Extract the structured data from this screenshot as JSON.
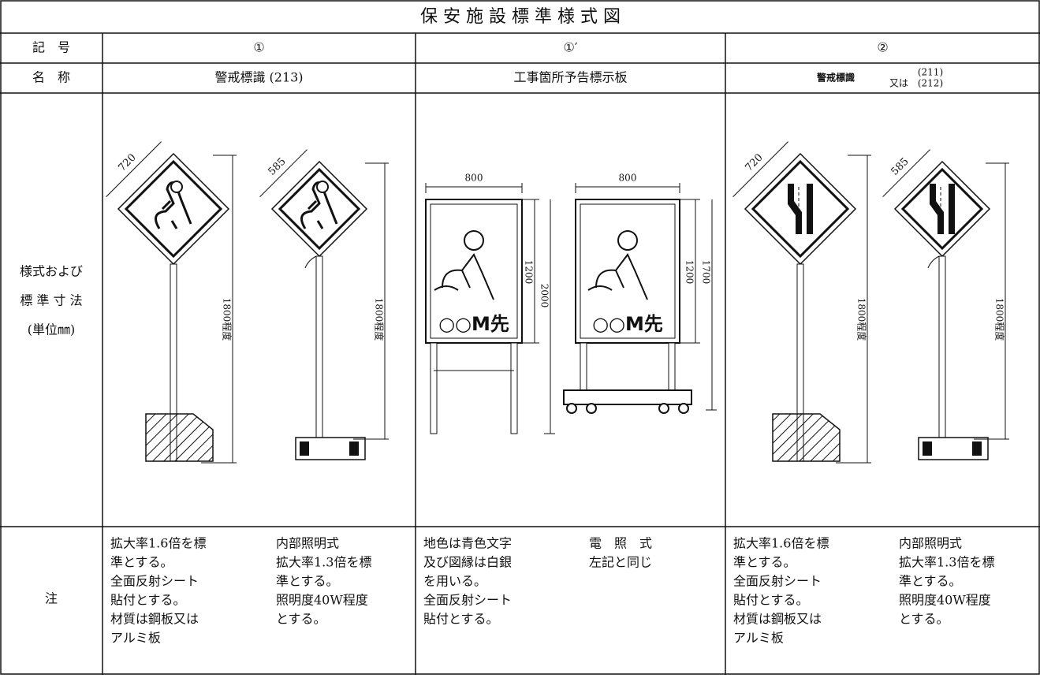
{
  "title": "保 安 施 設 標 準 様 式 図",
  "row_labels": {
    "symbol": "記　号",
    "name": "名　称",
    "style": [
      "様式および",
      "標 準 寸 法",
      "(単位㎜)"
    ],
    "notes": "注"
  },
  "columns": [
    {
      "symbol": "①",
      "name": "警戒標識 (213)",
      "figures": [
        {
          "size": "720",
          "height": "1800程度"
        },
        {
          "size": "585",
          "height": "1800程度"
        }
      ],
      "notes": [
        [
          "拡大率1.6倍を標",
          "準とする。",
          "全面反射シート",
          "貼付とする。",
          "材質は鋼板又は",
          "アルミ板"
        ],
        [
          "内部照明式",
          "拡大率1.3倍を標",
          "準とする。",
          "照明度40W程度",
          "とする。"
        ]
      ]
    },
    {
      "symbol": "①′",
      "name": "工事箇所予告標示板",
      "figures": [
        {
          "width": "800",
          "board_height": "1200",
          "total_height": "2000",
          "label": "○○M先"
        },
        {
          "width": "800",
          "board_height": "1200",
          "total_height": "1700",
          "label": "○○M先"
        }
      ],
      "notes": [
        [
          "地色は青色文字",
          "及び図縁は白銀",
          "を用いる。",
          "全面反射シート",
          "貼付とする。"
        ],
        [
          "電　照　式",
          "左記と同じ"
        ]
      ]
    },
    {
      "symbol": "②",
      "name_parts": [
        "警戒標識",
        "(211)",
        "又は",
        "(212)"
      ],
      "figures": [
        {
          "size": "720",
          "height": "1800程度"
        },
        {
          "size": "585",
          "height": "1800程度"
        }
      ],
      "notes": [
        [
          "拡大率1.6倍を標",
          "準とする。",
          "全面反射シート",
          "貼付とする。",
          "材質は鋼板又は",
          "アルミ板"
        ],
        [
          "内部照明式",
          "拡大率1.3倍を標",
          "準とする。",
          "照明度40W程度",
          "とする。"
        ]
      ]
    }
  ]
}
